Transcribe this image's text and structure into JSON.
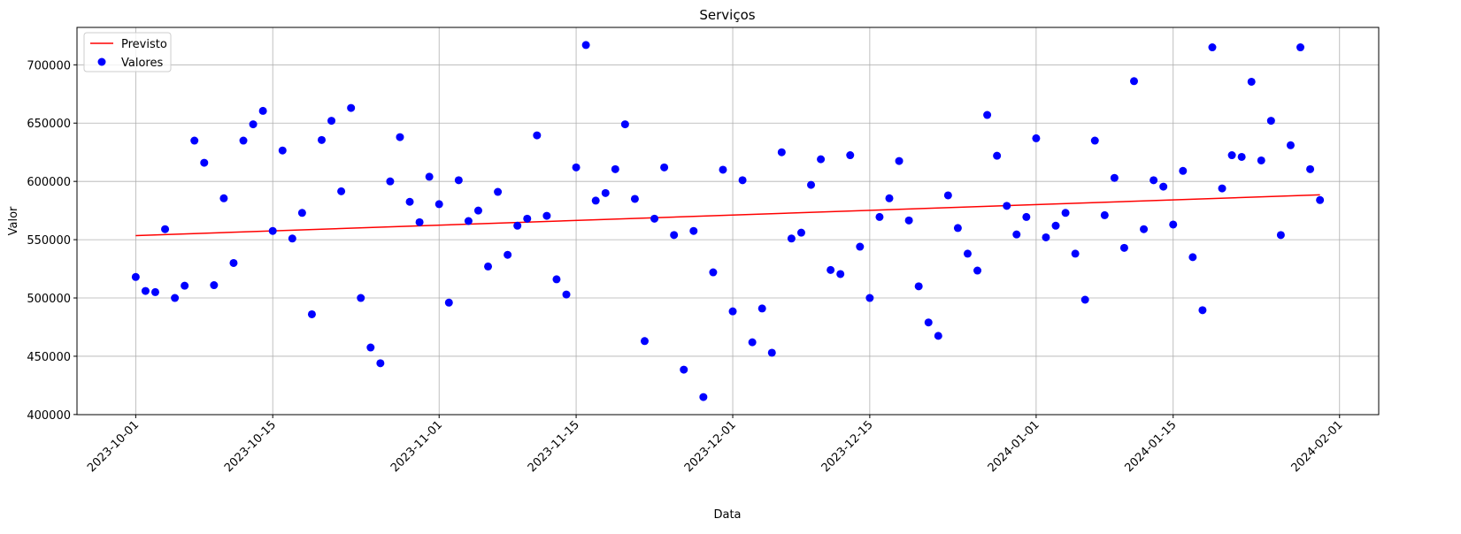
{
  "chart_data": {
    "type": "scatter",
    "title": "Serviços",
    "xlabel": "Data",
    "ylabel": "Valor",
    "xlim": [
      "2023-09-25",
      "2024-02-05"
    ],
    "ylim": [
      399900,
      732100
    ],
    "xticks": [
      "2023-10-01",
      "2023-10-15",
      "2023-11-01",
      "2023-11-15",
      "2023-12-01",
      "2023-12-15",
      "2024-01-01",
      "2024-01-15",
      "2024-02-01"
    ],
    "yticks": [
      400000,
      450000,
      500000,
      550000,
      600000,
      650000,
      700000
    ],
    "grid": true,
    "legend": "upper left",
    "series": [
      {
        "name": "Previsto",
        "type": "line",
        "color": "red",
        "x": [
          "2023-10-01",
          "2024-01-30"
        ],
        "values": [
          553500,
          588500
        ]
      },
      {
        "name": "Valores",
        "type": "scatter",
        "color": "blue",
        "x": [
          "2023-10-01",
          "2023-10-02",
          "2023-10-03",
          "2023-10-04",
          "2023-10-05",
          "2023-10-06",
          "2023-10-07",
          "2023-10-08",
          "2023-10-09",
          "2023-10-10",
          "2023-10-11",
          "2023-10-12",
          "2023-10-13",
          "2023-10-14",
          "2023-10-15",
          "2023-10-16",
          "2023-10-17",
          "2023-10-18",
          "2023-10-19",
          "2023-10-20",
          "2023-10-21",
          "2023-10-22",
          "2023-10-23",
          "2023-10-24",
          "2023-10-25",
          "2023-10-26",
          "2023-10-27",
          "2023-10-28",
          "2023-10-29",
          "2023-10-30",
          "2023-10-31",
          "2023-11-01",
          "2023-11-02",
          "2023-11-03",
          "2023-11-04",
          "2023-11-05",
          "2023-11-06",
          "2023-11-07",
          "2023-11-08",
          "2023-11-09",
          "2023-11-10",
          "2023-11-11",
          "2023-11-12",
          "2023-11-13",
          "2023-11-14",
          "2023-11-15",
          "2023-11-16",
          "2023-11-17",
          "2023-11-18",
          "2023-11-19",
          "2023-11-20",
          "2023-11-21",
          "2023-11-22",
          "2023-11-23",
          "2023-11-24",
          "2023-11-25",
          "2023-11-26",
          "2023-11-27",
          "2023-11-28",
          "2023-11-29",
          "2023-11-30",
          "2023-12-01",
          "2023-12-02",
          "2023-12-03",
          "2023-12-04",
          "2023-12-05",
          "2023-12-06",
          "2023-12-07",
          "2023-12-08",
          "2023-12-09",
          "2023-12-10",
          "2023-12-11",
          "2023-12-12",
          "2023-12-13",
          "2023-12-14",
          "2023-12-15",
          "2023-12-16",
          "2023-12-17",
          "2023-12-18",
          "2023-12-19",
          "2023-12-20",
          "2023-12-21",
          "2023-12-22",
          "2023-12-23",
          "2023-12-24",
          "2023-12-25",
          "2023-12-26",
          "2023-12-27",
          "2023-12-28",
          "2023-12-29",
          "2023-12-30",
          "2023-12-31",
          "2024-01-01",
          "2024-01-02",
          "2024-01-03",
          "2024-01-04",
          "2024-01-05",
          "2024-01-06",
          "2024-01-07",
          "2024-01-08",
          "2024-01-09",
          "2024-01-10",
          "2024-01-11",
          "2024-01-12",
          "2024-01-13",
          "2024-01-14",
          "2024-01-15",
          "2024-01-16",
          "2024-01-17",
          "2024-01-18",
          "2024-01-19",
          "2024-01-20",
          "2024-01-21",
          "2024-01-22",
          "2024-01-23",
          "2024-01-24",
          "2024-01-25",
          "2024-01-26",
          "2024-01-27",
          "2024-01-28",
          "2024-01-29",
          "2024-01-30"
        ],
        "values": [
          518000,
          506000,
          505000,
          559000,
          500000,
          510500,
          635000,
          616000,
          511000,
          585500,
          530000,
          635000,
          649000,
          660500,
          557500,
          626500,
          551000,
          573000,
          486000,
          635500,
          652000,
          591500,
          663000,
          500000,
          457500,
          444000,
          600000,
          638000,
          582500,
          565000,
          604000,
          580500,
          496000,
          601000,
          566000,
          575000,
          527000,
          591000,
          537000,
          562000,
          568000,
          639500,
          570500,
          516000,
          503000,
          612000,
          717000,
          583500,
          590000,
          610500,
          649000,
          585000,
          463000,
          568000,
          612000,
          554000,
          438500,
          557500,
          415000,
          522000,
          610000,
          488500,
          601000,
          462000,
          491000,
          453000,
          625000,
          551000,
          556000,
          597000,
          619000,
          524000,
          520500,
          622500,
          544000,
          500000,
          569500,
          585500,
          617500,
          566500,
          510000,
          479000,
          467500,
          588000,
          560000,
          538000,
          523500,
          657000,
          622000,
          579000,
          554500,
          569500,
          637000,
          552000,
          562000,
          573000,
          538000,
          498500,
          635000,
          571000,
          603000,
          543000,
          686000,
          559000,
          601000,
          595500,
          563000,
          609000,
          535000,
          489500,
          715000,
          594000,
          622500,
          621000,
          685500,
          618000,
          652000,
          554000,
          631000,
          715000,
          610500,
          584000
        ]
      }
    ]
  }
}
